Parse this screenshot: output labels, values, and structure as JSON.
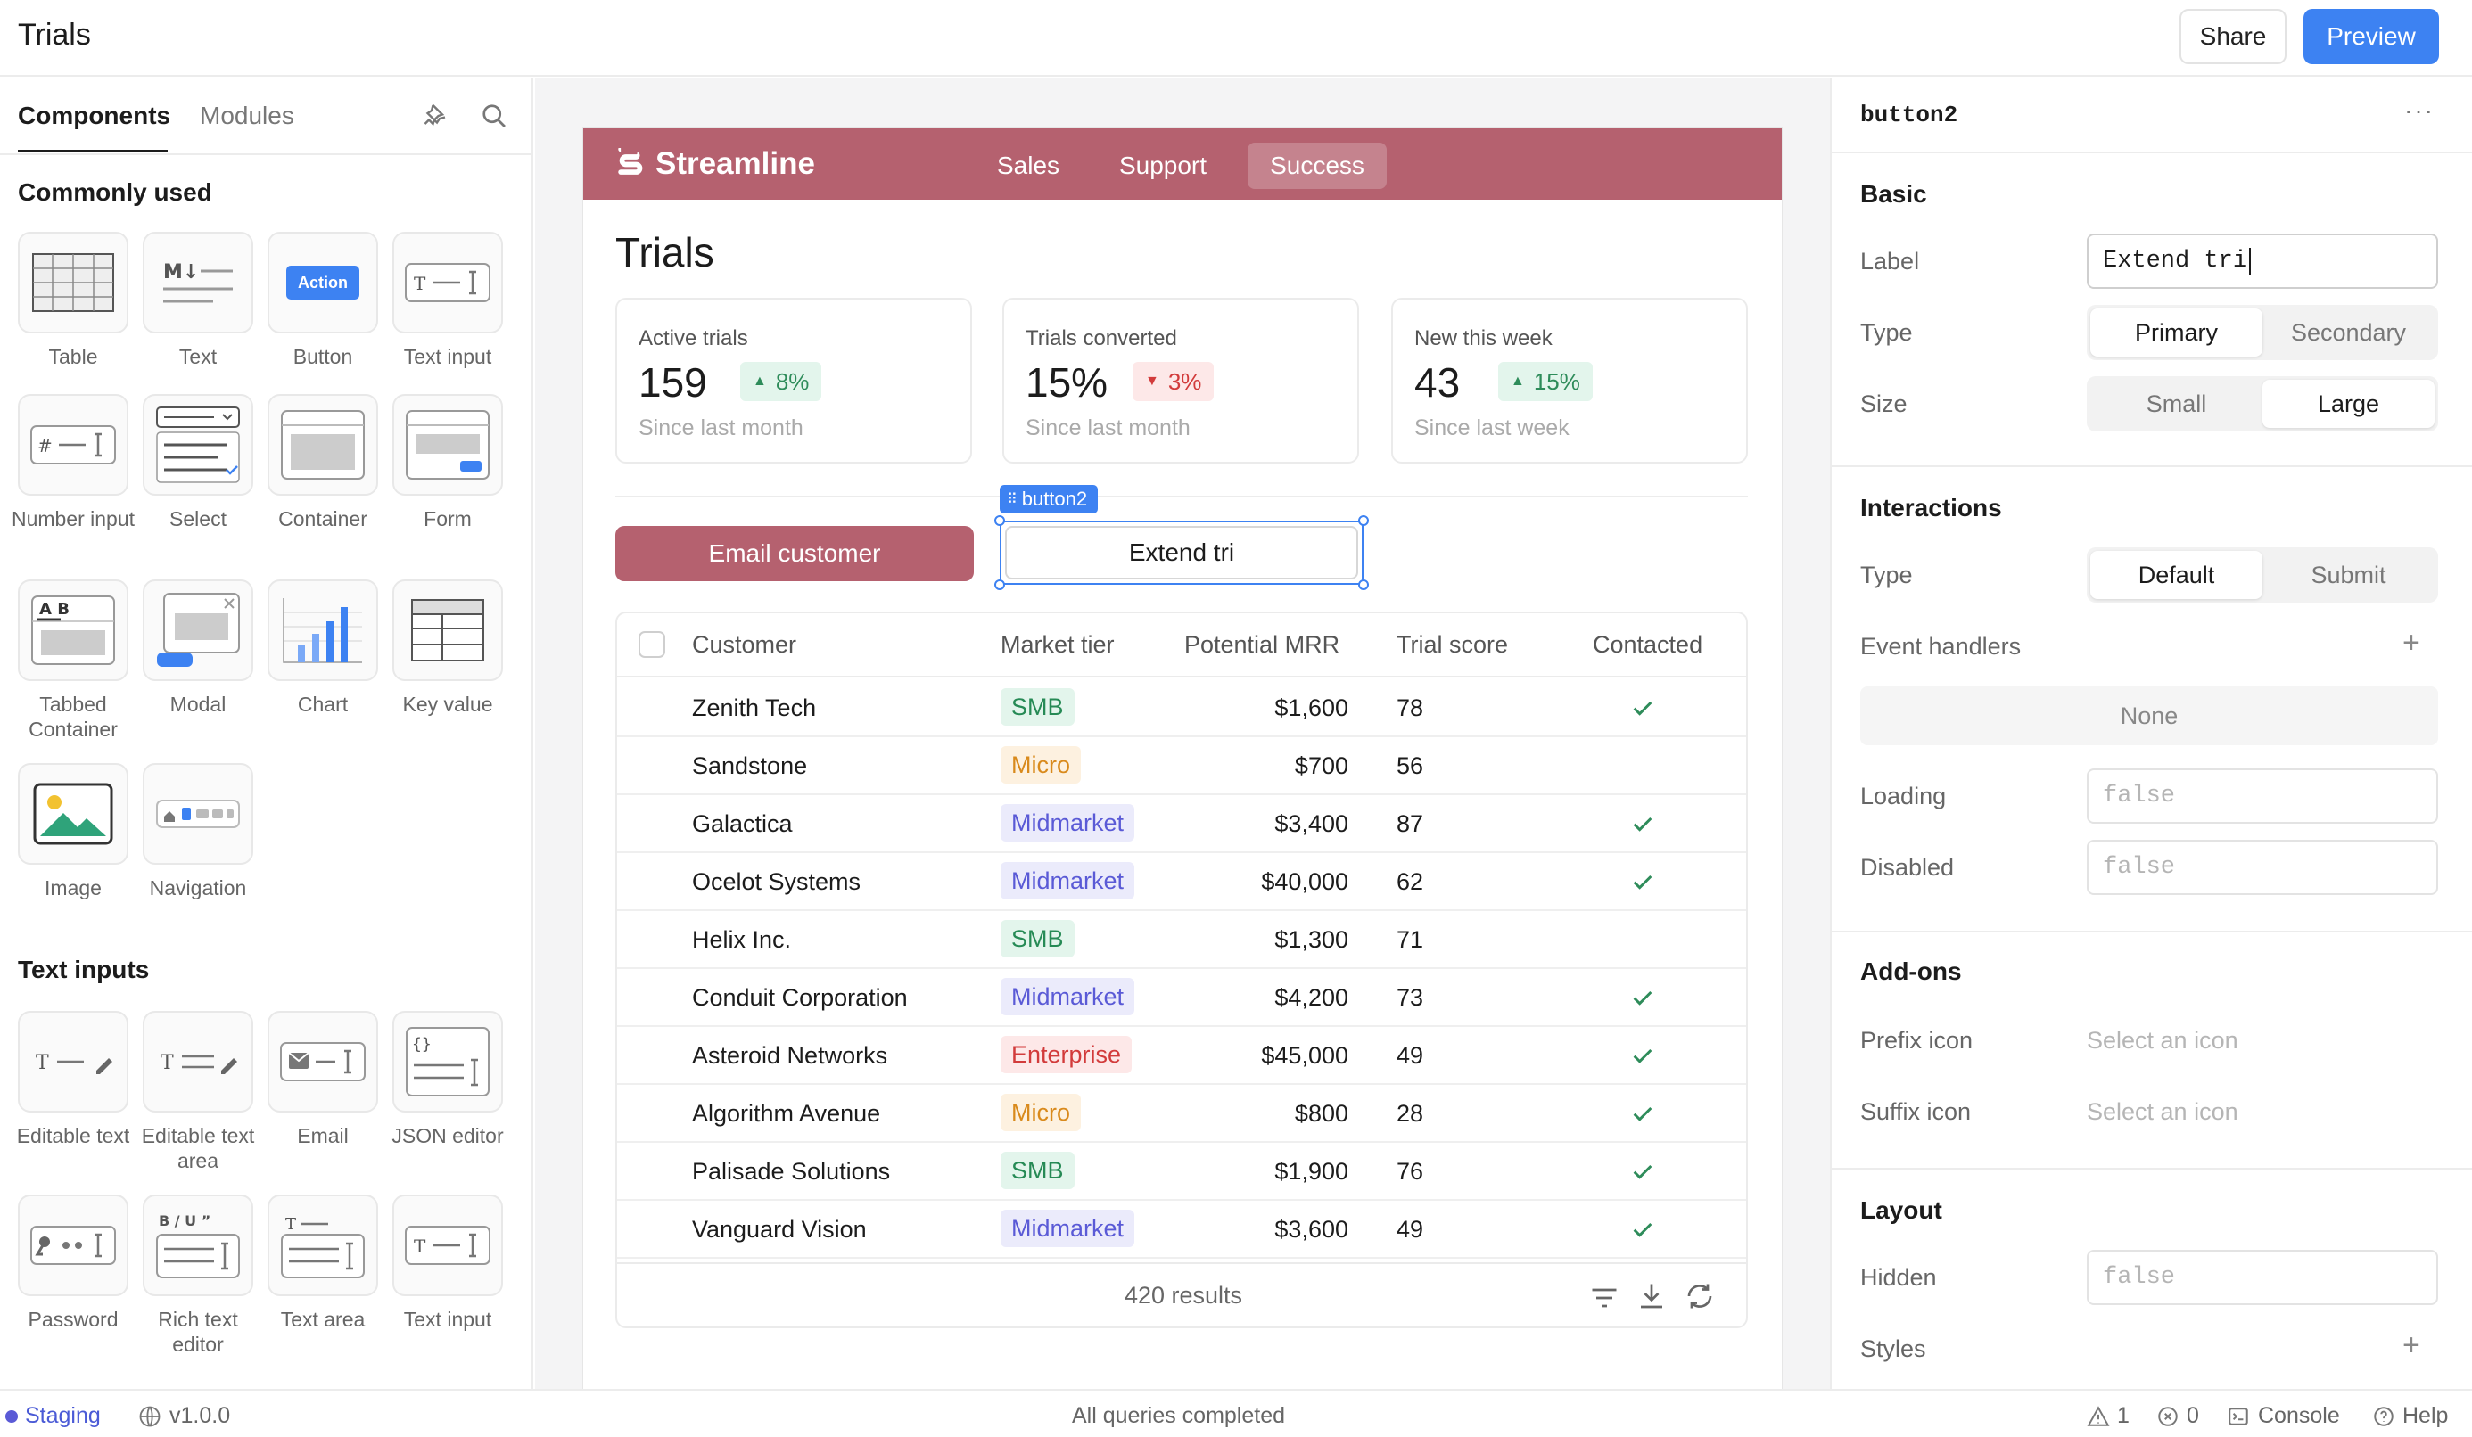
{
  "app": {
    "title": "Trials",
    "share_label": "Share",
    "preview_label": "Preview"
  },
  "left_panel": {
    "tabs": [
      "Components",
      "Modules"
    ],
    "sections": [
      {
        "title": "Commonly used",
        "items": [
          "Table",
          "Text",
          "Button",
          "Text input",
          "Number input",
          "Select",
          "Container",
          "Form",
          "Tabbed Container",
          "Modal",
          "Chart",
          "Key value",
          "Image",
          "Navigation"
        ]
      },
      {
        "title": "Text inputs",
        "items": [
          "Editable text",
          "Editable text area",
          "Email",
          "JSON editor",
          "Password",
          "Rich text editor",
          "Text area",
          "Text input"
        ]
      }
    ],
    "button_tile_text": "Action"
  },
  "canvas": {
    "brand": "Streamline",
    "nav": [
      "Sales",
      "Support",
      "Success"
    ],
    "active_nav": "Success",
    "page_title": "Trials",
    "kpis": [
      {
        "label": "Active trials",
        "value": "159",
        "delta": "8%",
        "direction": "up",
        "sub": "Since last month"
      },
      {
        "label": "Trials converted",
        "value": "15%",
        "delta": "3%",
        "direction": "down",
        "sub": "Since last month"
      },
      {
        "label": "New this week",
        "value": "43",
        "delta": "15%",
        "direction": "up",
        "sub": "Since last week"
      }
    ],
    "email_button": "Email customer",
    "extend_button": "Extend tri",
    "selected_tag": "button2",
    "table": {
      "columns": [
        "Customer",
        "Market tier",
        "Potential MRR",
        "Trial score",
        "Contacted"
      ],
      "rows": [
        {
          "customer": "Zenith Tech",
          "tier": "SMB",
          "mrr": "$1,600",
          "score": "78",
          "contacted": true
        },
        {
          "customer": "Sandstone",
          "tier": "Micro",
          "mrr": "$700",
          "score": "56",
          "contacted": false
        },
        {
          "customer": "Galactica",
          "tier": "Midmarket",
          "mrr": "$3,400",
          "score": "87",
          "contacted": true
        },
        {
          "customer": "Ocelot Systems",
          "tier": "Midmarket",
          "mrr": "$40,000",
          "score": "62",
          "contacted": true
        },
        {
          "customer": "Helix Inc.",
          "tier": "SMB",
          "mrr": "$1,300",
          "score": "71",
          "contacted": false
        },
        {
          "customer": "Conduit Corporation",
          "tier": "Midmarket",
          "mrr": "$4,200",
          "score": "73",
          "contacted": true
        },
        {
          "customer": "Asteroid Networks",
          "tier": "Enterprise",
          "mrr": "$45,000",
          "score": "49",
          "contacted": true
        },
        {
          "customer": "Algorithm Avenue",
          "tier": "Micro",
          "mrr": "$800",
          "score": "28",
          "contacted": true
        },
        {
          "customer": "Palisade Solutions",
          "tier": "SMB",
          "mrr": "$1,900",
          "score": "76",
          "contacted": true
        },
        {
          "customer": "Vanguard Vision",
          "tier": "Midmarket",
          "mrr": "$3,600",
          "score": "49",
          "contacted": true
        }
      ],
      "results": "420 results"
    }
  },
  "inspector": {
    "component_name": "button2",
    "basic": {
      "title": "Basic",
      "label_field": "Label",
      "label_value": "Extend tri",
      "type_field": "Type",
      "type_options": [
        "Primary",
        "Secondary"
      ],
      "type_selected": "Primary",
      "size_field": "Size",
      "size_options": [
        "Small",
        "Large"
      ],
      "size_selected": "Large"
    },
    "interactions": {
      "title": "Interactions",
      "type_field": "Type",
      "type_options": [
        "Default",
        "Submit"
      ],
      "type_selected": "Default",
      "event_handlers": "Event handlers",
      "event_none": "None",
      "loading_field": "Loading",
      "loading_value": "false",
      "disabled_field": "Disabled",
      "disabled_value": "false"
    },
    "addons": {
      "title": "Add-ons",
      "prefix_field": "Prefix icon",
      "prefix_placeholder": "Select an icon",
      "suffix_field": "Suffix icon",
      "suffix_placeholder": "Select an icon"
    },
    "layout": {
      "title": "Layout",
      "hidden_field": "Hidden",
      "hidden_value": "false",
      "styles_field": "Styles"
    }
  },
  "status_bar": {
    "env": "Staging",
    "version": "v1.0.0",
    "queries": "All queries completed",
    "warnings": "1",
    "errors": "0",
    "console": "Console",
    "help": "Help"
  },
  "colors": {
    "accent": "#3d82f2",
    "brand": "#b5616f"
  }
}
